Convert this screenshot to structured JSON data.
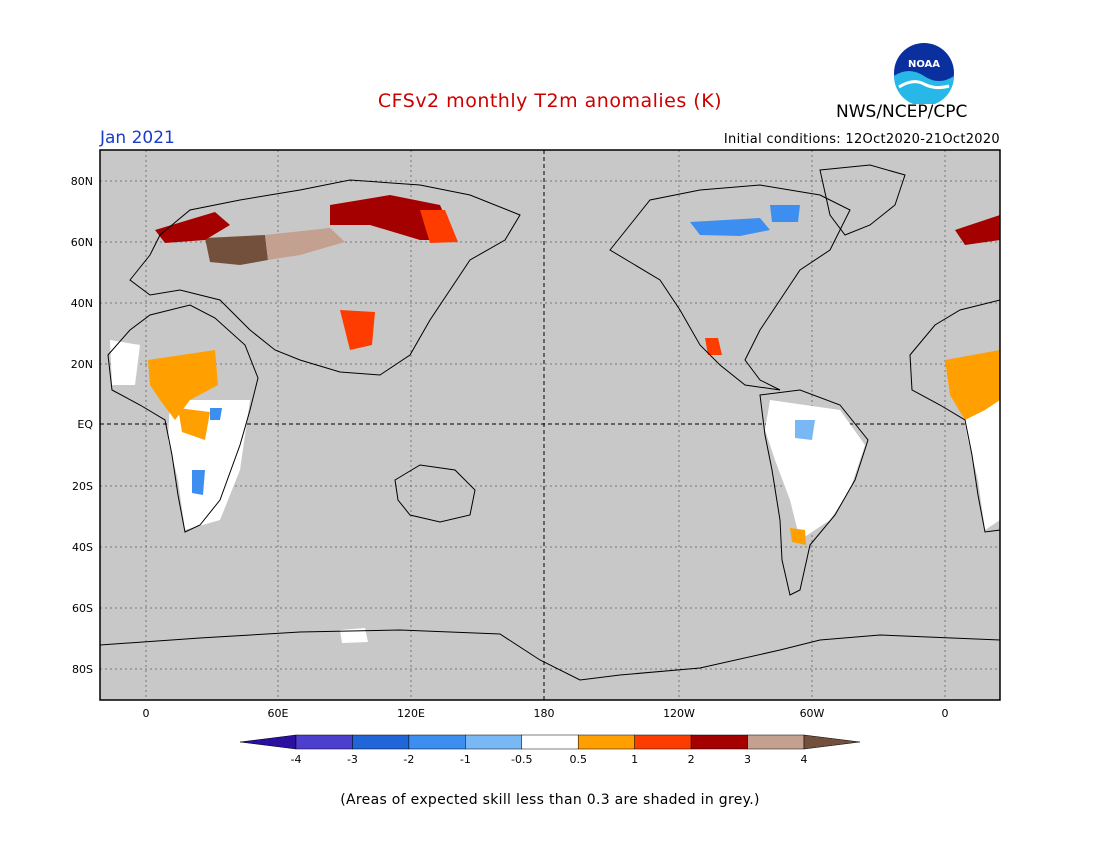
{
  "header": {
    "title": "CFSv2 monthly T2m anomalies (K)",
    "agency": "NWS/NCEP/CPC",
    "logo_text": "NOAA",
    "forecast_month": "Jan 2021",
    "initial_conditions": "Initial conditions: 12Oct2020-21Oct2020"
  },
  "map": {
    "lat_labels": [
      "80N",
      "60N",
      "40N",
      "20N",
      "EQ",
      "20S",
      "40S",
      "60S",
      "80S"
    ],
    "lon_labels": [
      "0",
      "60E",
      "120E",
      "180",
      "120W",
      "60W",
      "0"
    ],
    "background": "#c8c8c8"
  },
  "legend": {
    "tick_labels": [
      "-4",
      "-3",
      "-2",
      "-1",
      "-0.5",
      "0.5",
      "1",
      "2",
      "3",
      "4"
    ],
    "colors": [
      "#2a0fa0",
      "#4d3fce",
      "#2166d8",
      "#3c8ff0",
      "#7ab8f5",
      "#ffffff",
      "#ffa000",
      "#ff3c00",
      "#a50000",
      "#c4a090",
      "#73503c"
    ]
  },
  "footer": {
    "note": "(Areas of expected skill less than 0.3 are shaded in grey.)"
  }
}
